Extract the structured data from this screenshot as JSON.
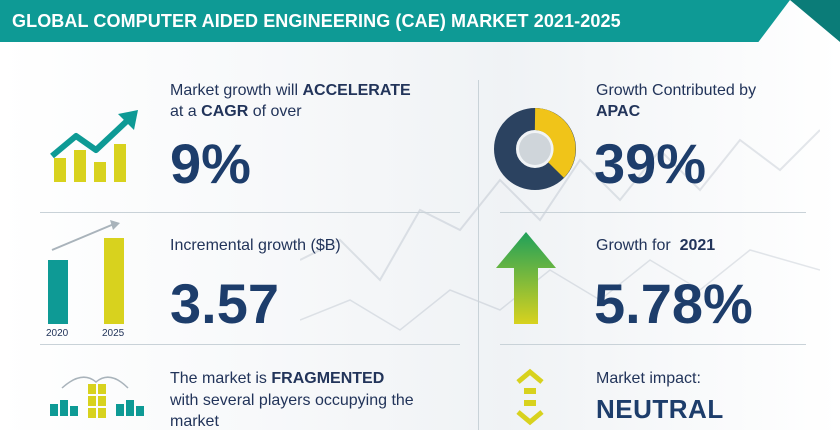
{
  "header": {
    "title": "GLOBAL COMPUTER AIDED ENGINEERING (CAE) MARKET 2021-2025",
    "bar_color": "#0e9a95"
  },
  "growth": {
    "line1_prefix": "Market growth will ",
    "line1_bold": "ACCELERATE",
    "line2_prefix": "at a ",
    "line2_bold": "CAGR",
    "line2_suffix": " of over",
    "value": "9%",
    "icon": "growth-chart-icon"
  },
  "incremental": {
    "label": "Incremental growth ($B)",
    "value": "3.57",
    "year_start": "2020",
    "year_end": "2025",
    "icon": "bar-comparison-icon"
  },
  "fragmented": {
    "line1_prefix": "The market is ",
    "line1_bold": "FRAGMENTED",
    "line2": "with several players occupying the",
    "line3": "market",
    "icon": "players-network-icon"
  },
  "apac": {
    "line1": "Growth Contributed by",
    "line2": "APAC",
    "value": "39%",
    "icon": "donut-chart-icon"
  },
  "growth2021": {
    "label_prefix": "Growth for  ",
    "label_bold": "2021",
    "value": "5.78%",
    "icon": "up-arrow-icon"
  },
  "impact": {
    "label": "Market impact:",
    "value": "NEUTRAL",
    "icon": "neutral-arrows-icon"
  },
  "colors": {
    "teal": "#0e9a95",
    "navy": "#1d3d6b",
    "yellow": "#d8d21e",
    "green": "#1fa05a"
  }
}
